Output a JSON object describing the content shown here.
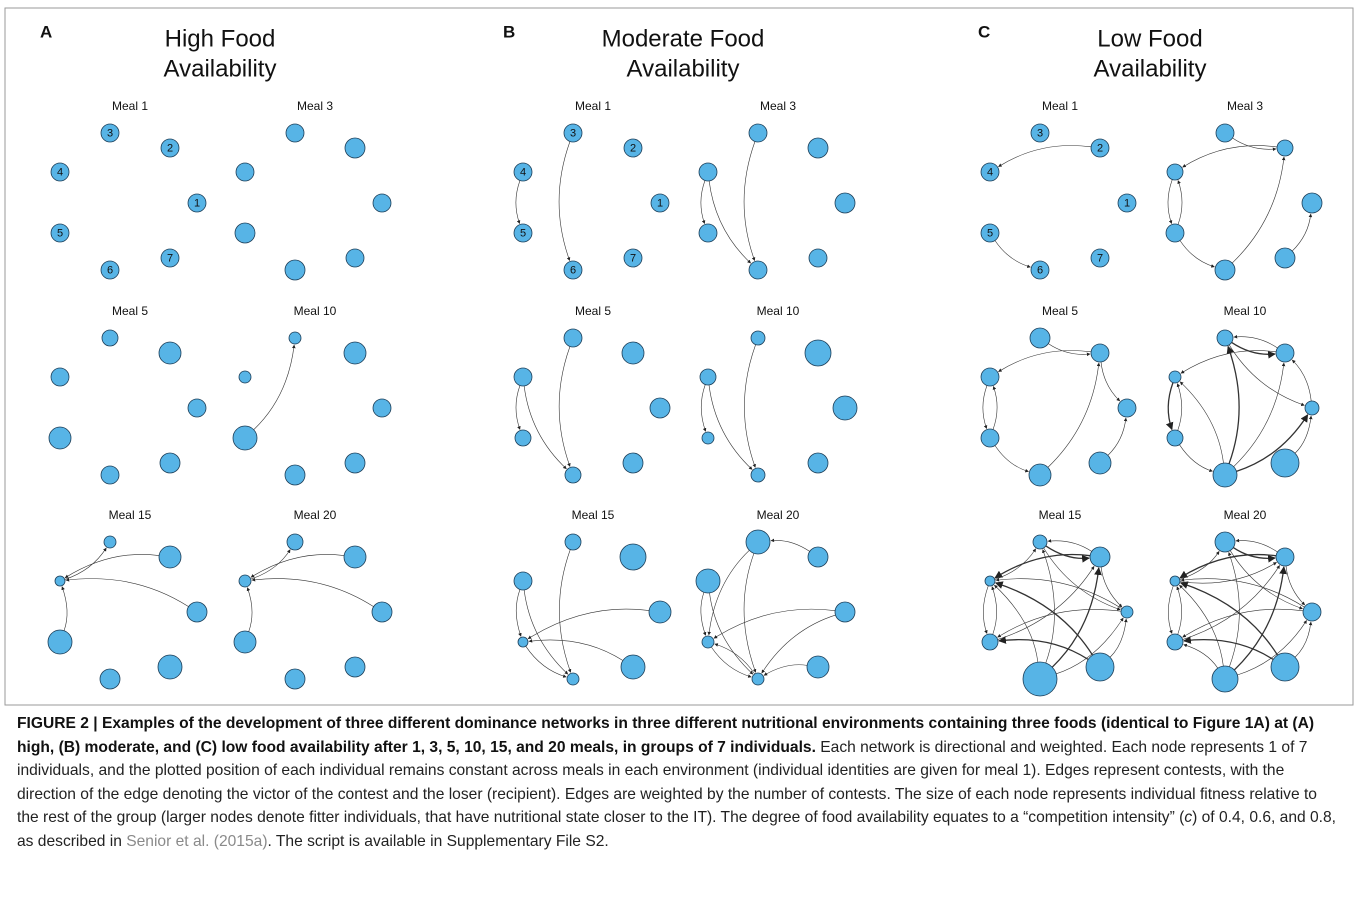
{
  "panels": [
    {
      "letter": "A",
      "title": [
        "High Food",
        "Availability"
      ],
      "networks": [
        {
          "label": "Meal 1",
          "node_labels": [
            "1",
            "2",
            "3",
            "4",
            "5",
            "6",
            "7"
          ]
        },
        {
          "label": "Meal 3"
        },
        {
          "label": "Meal 5"
        },
        {
          "label": "Meal 10"
        },
        {
          "label": "Meal 15"
        },
        {
          "label": "Meal 20"
        }
      ]
    },
    {
      "letter": "B",
      "title": [
        "Moderate Food",
        "Availability"
      ],
      "networks": [
        {
          "label": "Meal 1",
          "node_labels": [
            "1",
            "2",
            "3",
            "4",
            "5",
            "6",
            "7"
          ]
        },
        {
          "label": "Meal 3"
        },
        {
          "label": "Meal 5"
        },
        {
          "label": "Meal 10"
        },
        {
          "label": "Meal 15"
        },
        {
          "label": "Meal 20"
        }
      ]
    },
    {
      "letter": "C",
      "title": [
        "Low Food",
        "Availability"
      ],
      "networks": [
        {
          "label": "Meal 1",
          "node_labels": [
            "1",
            "2",
            "3",
            "4",
            "5",
            "6",
            "7"
          ]
        },
        {
          "label": "Meal 3"
        },
        {
          "label": "Meal 5"
        },
        {
          "label": "Meal 10"
        },
        {
          "label": "Meal 15"
        },
        {
          "label": "Meal 20"
        }
      ]
    }
  ],
  "caption": {
    "bold": "FIGURE 2 | Examples of the development of three different dominance networks in three different nutritional environments containing three foods (identical to Figure 1A) at (A) high, (B) moderate, and (C) low food availability after 1, 3, 5, 10, 15, and 20 meals, in groups of 7 individuals.",
    "text_1": " Each network is directional and weighted. Each node represents 1 of 7 individuals, and the plotted position of each individual remains constant across meals in each environment (individual identities are given for meal 1). Edges represent contests, with the direction of the edge denoting the victor of the contest and the loser (recipient). Edges are weighted by the number of contests. The size of each node represents individual fitness relative to the rest of the group (larger nodes denote fitter individuals, that have nutritional state closer to the IT). The degree of food availability equates to a “competition intensity” (",
    "italic": "c",
    "text_2": ") of 0.4, 0.6, and 0.8, as described in ",
    "link": "Senior et al. (2015a)",
    "text_3": ". The script is available in Supplementary File S2."
  }
}
